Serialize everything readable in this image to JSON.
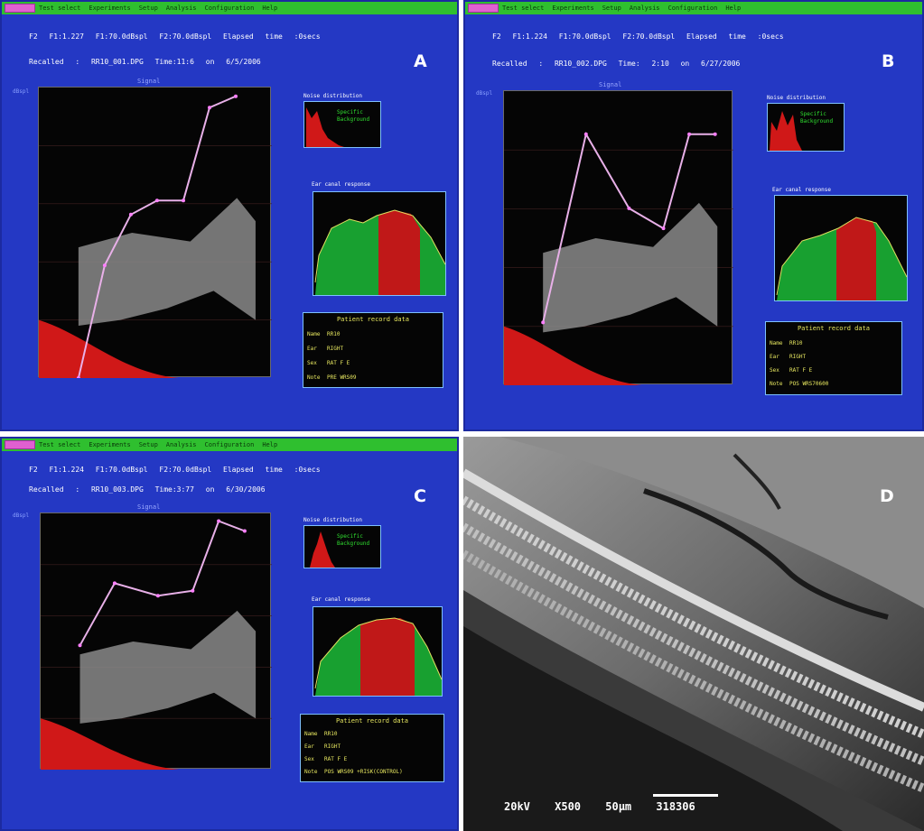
{
  "menu": [
    "Test select",
    "Experiments",
    "Setup",
    "Analysis",
    "Configuration",
    "Help"
  ],
  "panels": [
    {
      "letter": "A",
      "header1": "F2 F1:1.227   F1:70.0dBspl   F2:70.0dBspl   Elapsed time :0secs",
      "header2": "Recalled : RR10_001.DPG        Time:11:6  on 6/5/2006",
      "plot_title": "Signal",
      "noise_title": "Noise distribution",
      "noise_legend": [
        "Specific",
        "Background"
      ],
      "ear_title": "Ear canal response",
      "record": {
        "title": "Patient record data",
        "rows": [
          [
            "Name",
            "RR10"
          ],
          [
            "Ear",
            "RIGHT"
          ],
          [
            "Sex",
            "RAT F E"
          ],
          [
            "Note",
            "PRE WRS09"
          ]
        ]
      },
      "signal": [
        [
          0,
          0.0
        ],
        [
          0.15,
          0.4
        ],
        [
          0.3,
          0.58
        ],
        [
          0.45,
          0.63
        ],
        [
          0.6,
          0.63
        ],
        [
          0.75,
          0.96
        ],
        [
          0.9,
          1.0
        ]
      ]
    },
    {
      "letter": "B",
      "header1": "F2 F1:1.224   F1:70.0dBspl   F2:70.0dBspl   Elapsed time :0secs",
      "header2": "Recalled : RR10_002.DPG        Time: 2:10  on 6/27/2006",
      "plot_title": "Signal",
      "noise_title": "Noise distribution",
      "noise_legend": [
        "Specific",
        "Background"
      ],
      "ear_title": "Ear canal response",
      "record": {
        "title": "Patient record data",
        "rows": [
          [
            "Name",
            "RR10"
          ],
          [
            "Ear",
            "RIGHT"
          ],
          [
            "Sex",
            "RAT F E"
          ],
          [
            "Note",
            "POS WRS70600"
          ]
        ]
      },
      "signal": [
        [
          0,
          0.22
        ],
        [
          0.25,
          0.88
        ],
        [
          0.5,
          0.62
        ],
        [
          0.7,
          0.55
        ],
        [
          0.85,
          0.88
        ],
        [
          1.0,
          0.88
        ]
      ]
    },
    {
      "letter": "C",
      "header1": "F2 F1:1.224   F1:70.0dBspl   F2:70.0dBspl   Elapsed time :0secs",
      "header2": "Recalled : RR10_003.DPG        Time:3:77  on 6/30/2006",
      "plot_title": "Signal",
      "noise_title": "Noise distribution",
      "noise_legend": [
        "Specific",
        "Background"
      ],
      "ear_title": "Ear canal response",
      "record": {
        "title": "Patient record data",
        "rows": [
          [
            "Name",
            "RR10"
          ],
          [
            "Ear",
            "RIGHT"
          ],
          [
            "Sex",
            "RAT F E"
          ],
          [
            "Note",
            "POS WRS09 +RISK(CONTROL)"
          ]
        ]
      },
      "signal": [
        [
          0,
          0.5
        ],
        [
          0.2,
          0.75
        ],
        [
          0.45,
          0.7
        ],
        [
          0.65,
          0.72
        ],
        [
          0.8,
          1.0
        ],
        [
          0.95,
          0.96
        ]
      ]
    }
  ],
  "sem": {
    "letter": "D",
    "caption": "20kV  X500  50µm  318306"
  },
  "colors": {
    "panel_bg": "#2438c4",
    "menubar": "#2fbf2f",
    "noise_band": "#8a8a8a",
    "red_fill": "#d01818",
    "ear_green": "#18a030",
    "signal_line": "#e8b0e8"
  }
}
